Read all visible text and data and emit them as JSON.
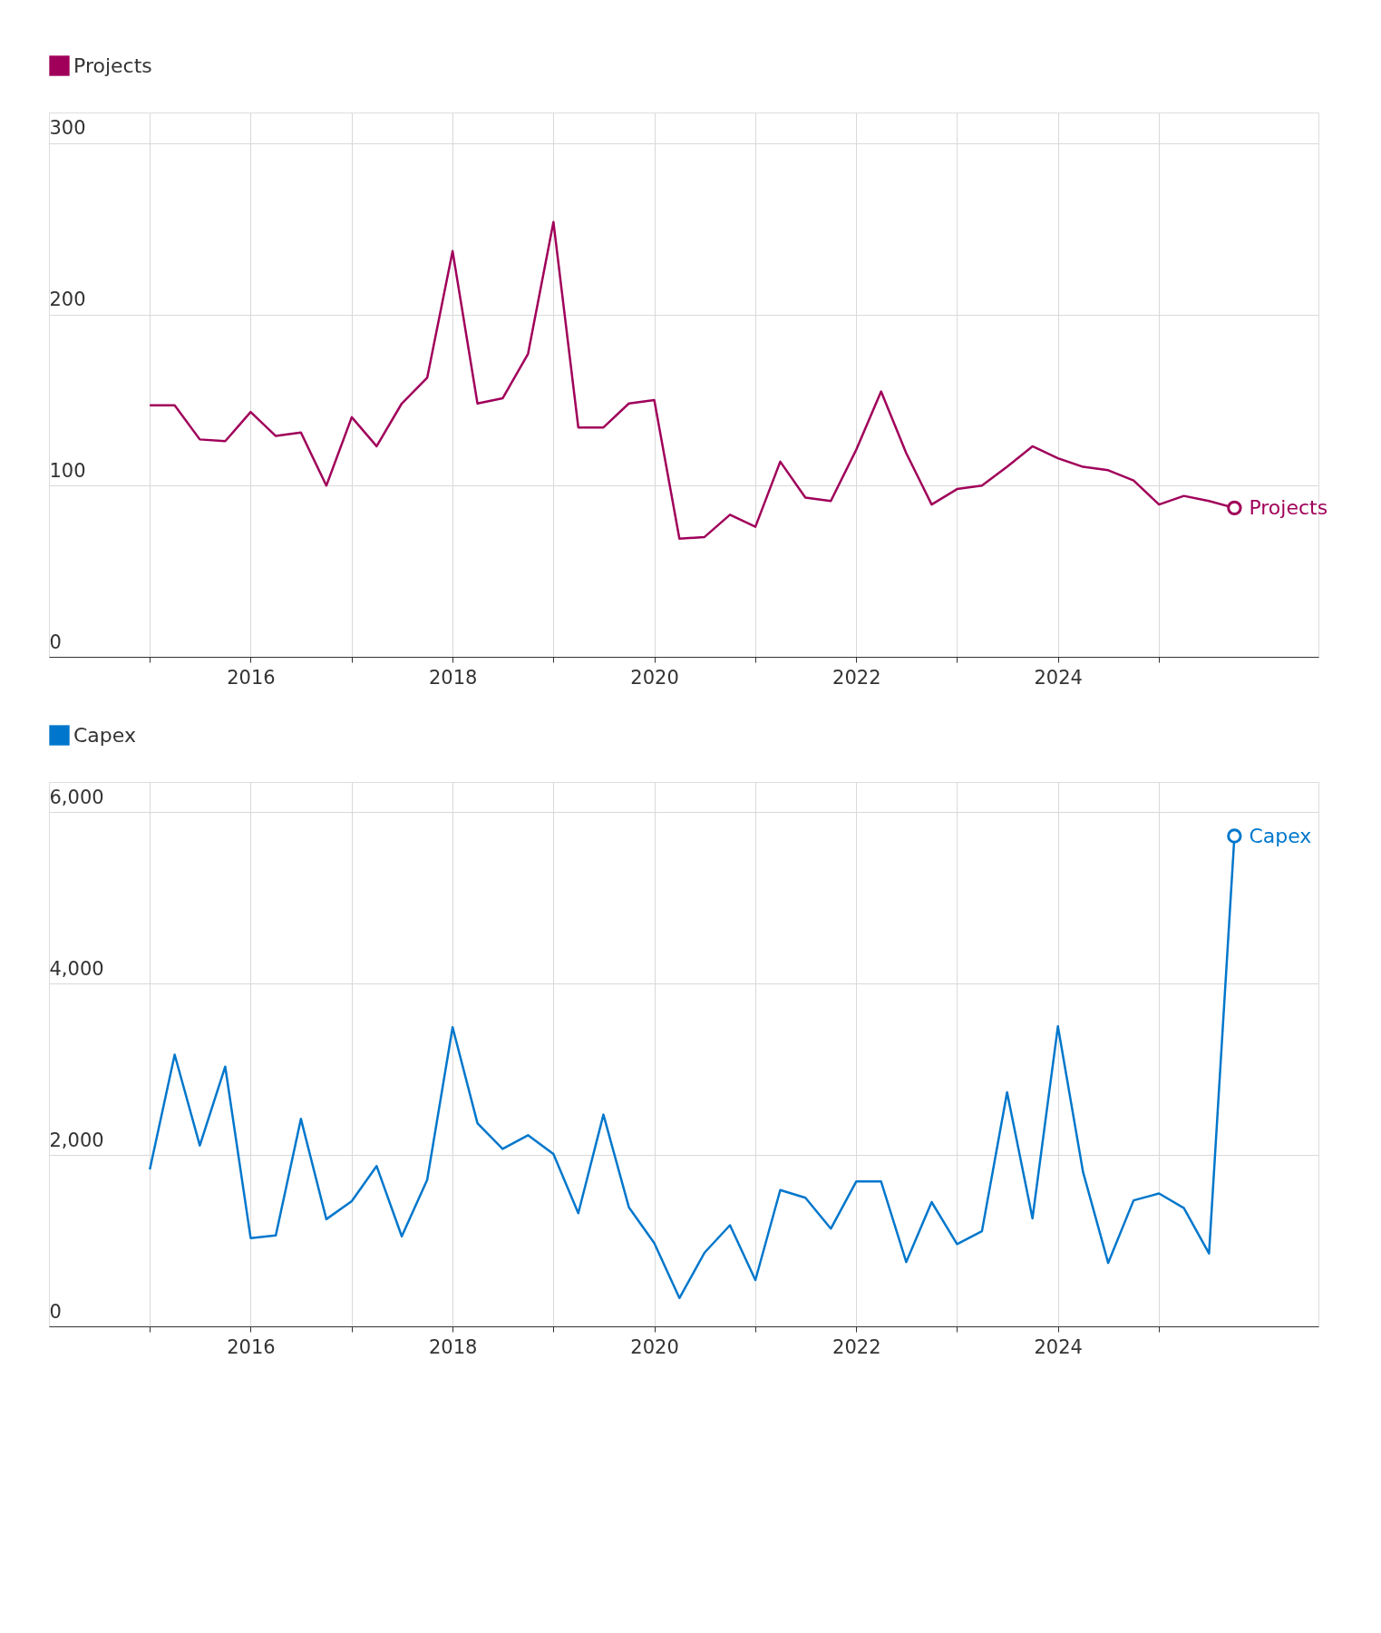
{
  "chart_data": [
    {
      "type": "line",
      "legend": "top left",
      "grid": true,
      "x": [
        "2015-01",
        "2015-04",
        "2015-07",
        "2015-10",
        "2016-01",
        "2016-04",
        "2016-07",
        "2016-10",
        "2017-01",
        "2017-04",
        "2017-07",
        "2017-10",
        "2018-01",
        "2018-04",
        "2018-07",
        "2018-10",
        "2019-01",
        "2019-04",
        "2019-07",
        "2019-10",
        "2020-01",
        "2020-04",
        "2020-07",
        "2020-10",
        "2021-01",
        "2021-04",
        "2021-07",
        "2021-10",
        "2022-01",
        "2022-04",
        "2022-07",
        "2022-10",
        "2023-01",
        "2023-04",
        "2023-07",
        "2023-10",
        "2024-01",
        "2024-04",
        "2024-07",
        "2024-10",
        "2025-01",
        "2025-04",
        "2025-07",
        "2025-10"
      ],
      "series": [
        {
          "name": "Projects",
          "color": "#a0005a",
          "values": [
            147,
            147,
            127,
            126,
            143,
            129,
            131,
            100,
            140,
            123,
            148,
            163,
            237,
            148,
            151,
            177,
            254,
            134,
            134,
            148,
            150,
            69,
            70,
            83,
            76,
            114,
            93,
            91,
            121,
            155,
            119,
            89,
            98,
            100,
            111,
            123,
            116,
            111,
            109,
            103,
            89,
            94,
            91,
            87
          ]
        }
      ],
      "xlim": [
        "2014-01",
        "2026-08"
      ],
      "xticks": [
        {
          "value": "2015",
          "label": null
        },
        {
          "value": "2016",
          "label": "2016"
        },
        {
          "value": "2017",
          "label": null
        },
        {
          "value": "2018",
          "label": "2018"
        },
        {
          "value": "2019",
          "label": null
        },
        {
          "value": "2020",
          "label": "2020"
        },
        {
          "value": "2021",
          "label": null
        },
        {
          "value": "2022",
          "label": "2022"
        },
        {
          "value": "2023",
          "label": null
        },
        {
          "value": "2024",
          "label": "2024"
        },
        {
          "value": "2025",
          "label": null
        }
      ],
      "ylim": [
        0,
        318
      ],
      "yticks": [
        0,
        100,
        200,
        300
      ]
    },
    {
      "type": "line",
      "legend": "top left",
      "grid": true,
      "x": [
        "2015-01",
        "2015-04",
        "2015-07",
        "2015-10",
        "2016-01",
        "2016-04",
        "2016-07",
        "2016-10",
        "2017-01",
        "2017-04",
        "2017-07",
        "2017-10",
        "2018-01",
        "2018-04",
        "2018-07",
        "2018-10",
        "2019-01",
        "2019-04",
        "2019-07",
        "2019-10",
        "2020-01",
        "2020-04",
        "2020-07",
        "2020-10",
        "2021-01",
        "2021-04",
        "2021-07",
        "2021-10",
        "2022-01",
        "2022-04",
        "2022-07",
        "2022-10",
        "2023-01",
        "2023-04",
        "2023-07",
        "2023-10",
        "2024-01",
        "2024-04",
        "2024-07",
        "2024-10",
        "2025-01",
        "2025-04",
        "2025-07",
        "2025-10"
      ],
      "series": [
        {
          "name": "Capex",
          "color": "#0077cc",
          "values": [
            1830,
            3170,
            2110,
            3030,
            1030,
            1060,
            2420,
            1250,
            1460,
            1870,
            1050,
            1710,
            3490,
            2370,
            2070,
            2230,
            2010,
            1320,
            2470,
            1390,
            970,
            330,
            860,
            1180,
            540,
            1590,
            1500,
            1140,
            1690,
            1690,
            750,
            1450,
            960,
            1110,
            2730,
            1260,
            3500,
            1800,
            740,
            1470,
            1550,
            1380,
            850,
            5720
          ]
        }
      ],
      "xlim": [
        "2014-01",
        "2026-08"
      ],
      "xticks": [
        {
          "value": "2015",
          "label": null
        },
        {
          "value": "2016",
          "label": "2016"
        },
        {
          "value": "2017",
          "label": null
        },
        {
          "value": "2018",
          "label": "2018"
        },
        {
          "value": "2019",
          "label": null
        },
        {
          "value": "2020",
          "label": "2020"
        },
        {
          "value": "2021",
          "label": null
        },
        {
          "value": "2022",
          "label": "2022"
        },
        {
          "value": "2023",
          "label": null
        },
        {
          "value": "2024",
          "label": "2024"
        },
        {
          "value": "2025",
          "label": null
        }
      ],
      "ylim": [
        0,
        6350
      ],
      "yticks": [
        0,
        {
          "value": 2000,
          "label": "2,000"
        },
        {
          "value": 4000,
          "label": "4,000"
        },
        {
          "value": 6000,
          "label": "6,000"
        }
      ]
    }
  ]
}
